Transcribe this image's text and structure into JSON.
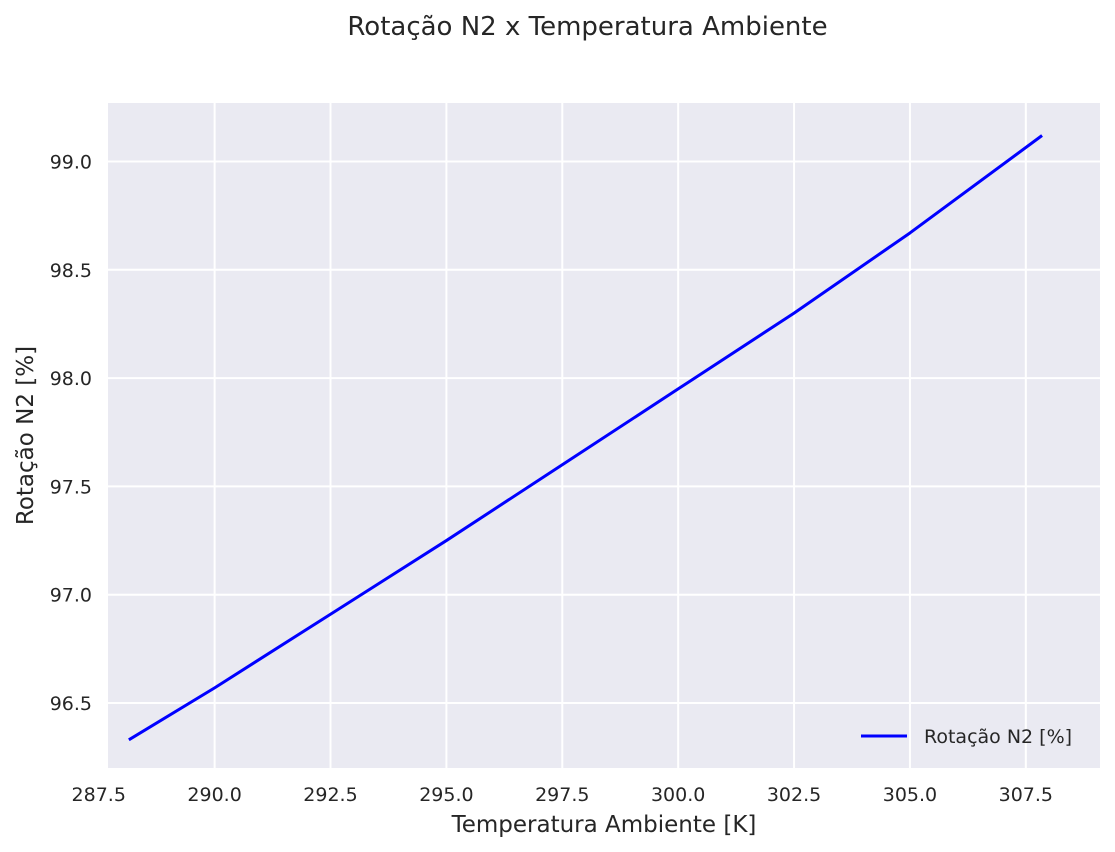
{
  "chart_data": {
    "type": "line",
    "title": "Rotação N2 x Temperatura Ambiente",
    "xlabel": "Temperatura Ambiente [K]",
    "ylabel": "Rotação N2 [%]",
    "xlim": [
      287.7,
      309.1
    ],
    "ylim": [
      96.2,
      99.27
    ],
    "xticks": [
      287.5,
      290.0,
      292.5,
      295.0,
      297.5,
      300.0,
      302.5,
      305.0,
      307.5
    ],
    "xtick_labels": [
      "287.5",
      "290.0",
      "292.5",
      "295.0",
      "297.5",
      "300.0",
      "302.5",
      "305.0",
      "307.5"
    ],
    "yticks": [
      96.5,
      97.0,
      97.5,
      98.0,
      98.5,
      99.0
    ],
    "ytick_labels": [
      "96.5",
      "97.0",
      "97.5",
      "98.0",
      "98.5",
      "99.0"
    ],
    "grid": true,
    "legend_position": "lower-right",
    "series": [
      {
        "name": "Rotação N2 [%]",
        "color": "#0000ff",
        "x": [
          288.15,
          290.0,
          292.5,
          295.0,
          297.5,
          300.0,
          302.5,
          305.0,
          307.85
        ],
        "y": [
          96.33,
          96.57,
          96.91,
          97.25,
          97.6,
          97.95,
          98.3,
          98.67,
          99.12
        ]
      }
    ]
  },
  "colors": {
    "plot_background": "#eaeaf2",
    "grid": "#ffffff",
    "line": "#0000ff"
  }
}
